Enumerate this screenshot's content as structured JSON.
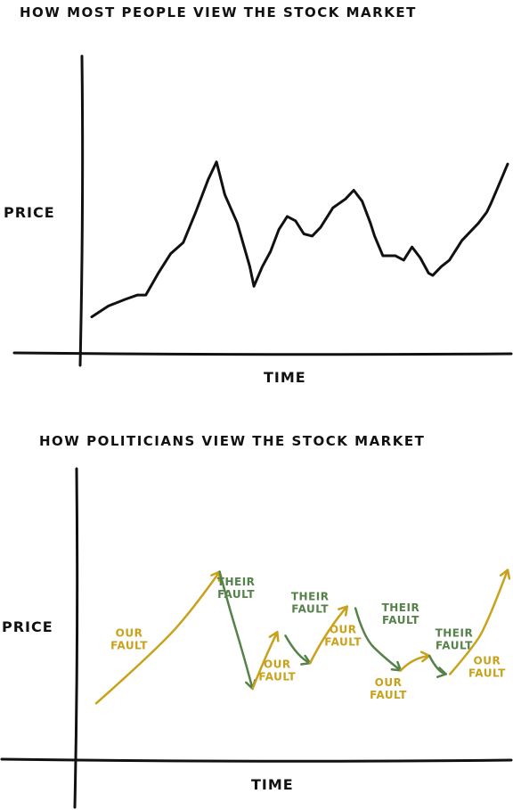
{
  "colors": {
    "ink": "#111111",
    "ours": "#c9a21c",
    "theirs": "#56824a"
  },
  "chart_data": [
    {
      "type": "line",
      "title": "HOW MOST PEOPLE VIEW THE STOCK MARKET",
      "xlabel": "TIME",
      "ylabel": "PRICE",
      "xlim": [
        0,
        100
      ],
      "ylim": [
        0,
        100
      ],
      "grid": false,
      "series": [
        {
          "x": [
            0,
            4,
            8,
            11,
            13,
            16,
            19,
            22,
            25,
            28,
            30,
            32,
            35,
            38,
            39,
            41,
            43,
            45,
            47,
            49,
            51,
            53,
            55,
            58,
            61,
            63,
            65,
            67,
            68,
            70,
            73,
            75,
            77,
            79,
            81,
            82,
            84,
            86,
            88,
            89,
            91,
            93,
            95,
            96,
            98,
            100
          ],
          "y": [
            12,
            17,
            20,
            22,
            22,
            32,
            41,
            46,
            60,
            75,
            83,
            68,
            55,
            35,
            26,
            35,
            42,
            52,
            58,
            56,
            50,
            49,
            53,
            62,
            66,
            70,
            65,
            55,
            49,
            40,
            40,
            38,
            44,
            39,
            32,
            31,
            35,
            38,
            44,
            47,
            51,
            55,
            60,
            64,
            73,
            82
          ]
        }
      ]
    },
    {
      "type": "line",
      "title": "HOW POLITICIANS VIEW THE STOCK MARKET",
      "xlabel": "TIME",
      "ylabel": "PRICE",
      "xlim": [
        0,
        100
      ],
      "ylim": [
        0,
        100
      ],
      "grid": false,
      "series": [
        {
          "name": "OUR FAULT",
          "x": [
            0,
            15,
            24,
            30
          ],
          "y": [
            15,
            45,
            68,
            87
          ]
        },
        {
          "name": "THEIR FAULT",
          "x": [
            30,
            32,
            36,
            38
          ],
          "y": [
            87,
            70,
            40,
            23
          ]
        },
        {
          "name": "OUR FAULT",
          "x": [
            38,
            41,
            44
          ],
          "y": [
            23,
            40,
            54
          ]
        },
        {
          "name": "THEIR FAULT",
          "x": [
            46,
            49,
            52
          ],
          "y": [
            52,
            40,
            37
          ]
        },
        {
          "name": "OUR FAULT",
          "x": [
            52,
            56,
            61
          ],
          "y": [
            37,
            55,
            68
          ]
        },
        {
          "name": "THEIR FAULT",
          "x": [
            63,
            65,
            70,
            74
          ],
          "y": [
            67,
            51,
            40,
            33
          ]
        },
        {
          "name": "OUR FAULT",
          "x": [
            74,
            77,
            81
          ],
          "y": [
            33,
            40,
            41
          ]
        },
        {
          "name": "THEIR FAULT",
          "x": [
            81,
            83,
            85
          ],
          "y": [
            41,
            32,
            31
          ]
        },
        {
          "name": "OUR FAULT",
          "x": [
            86,
            91,
            95,
            100
          ],
          "y": [
            31,
            44,
            58,
            88
          ]
        }
      ],
      "annotations": [
        {
          "text": "OUR FAULT",
          "x": 8,
          "y": 50
        },
        {
          "text": "THEIR FAULT",
          "x": 34,
          "y": 78
        },
        {
          "text": "OUR FAULT",
          "x": 44,
          "y": 33
        },
        {
          "text": "THEIR FAULT",
          "x": 52,
          "y": 70
        },
        {
          "text": "OUR FAULT",
          "x": 60,
          "y": 52
        },
        {
          "text": "THEIR FAULT",
          "x": 74,
          "y": 64
        },
        {
          "text": "OUR FAULT",
          "x": 71,
          "y": 23
        },
        {
          "text": "THEIR FAULT",
          "x": 87,
          "y": 50
        },
        {
          "text": "OUR FAULT",
          "x": 95,
          "y": 35
        }
      ]
    }
  ]
}
